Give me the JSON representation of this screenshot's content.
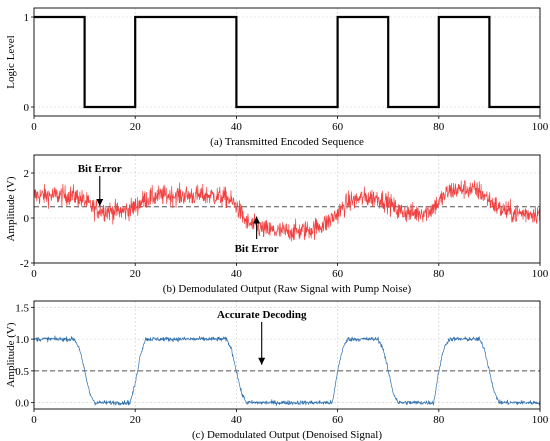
{
  "chart_data": [
    {
      "type": "line",
      "caption": "(a) Transmitted Encoded Sequence",
      "ylabel": "Logic Level",
      "xlim": [
        0,
        100
      ],
      "ylim": [
        -0.1,
        1.1
      ],
      "xticks": [
        "0",
        "20",
        "40",
        "60",
        "80",
        "100"
      ],
      "yticks": [
        "0",
        "1"
      ],
      "grid": true,
      "series": [
        {
          "style": "step",
          "color": "#000000",
          "x": [
            0,
            10,
            10,
            20,
            20,
            40,
            40,
            60,
            60,
            70,
            70,
            80,
            80,
            90,
            90,
            100
          ],
          "y": [
            1,
            1,
            0,
            0,
            1,
            1,
            0,
            0,
            1,
            1,
            0,
            0,
            1,
            1,
            0,
            0
          ]
        }
      ]
    },
    {
      "type": "line",
      "caption": "(b) Demodulated Output (Raw Signal with Pump Noise)",
      "ylabel": "Amplitude (V)",
      "xlim": [
        0,
        100
      ],
      "ylim": [
        -2,
        2.8
      ],
      "xticks": [
        "0",
        "20",
        "40",
        "60",
        "80",
        "100"
      ],
      "yticks": [
        "-2",
        "0",
        "2"
      ],
      "grid": true,
      "threshold": 0.5,
      "series": [
        {
          "style": "noisy",
          "color": "#f04040",
          "x": [
            0,
            8,
            10,
            12,
            15,
            18,
            20,
            22,
            25,
            30,
            35,
            38,
            40,
            42,
            45,
            48,
            52,
            55,
            58,
            60,
            62,
            65,
            68,
            70,
            72,
            75,
            78,
            80,
            82,
            85,
            88,
            90,
            92,
            95,
            100
          ],
          "y": [
            1.0,
            1.0,
            0.75,
            0.4,
            0.3,
            0.3,
            0.5,
            0.85,
            1.0,
            1.0,
            1.0,
            0.9,
            0.55,
            -0.2,
            -0.5,
            -0.6,
            -0.6,
            -0.5,
            -0.2,
            0.2,
            0.7,
            0.9,
            0.9,
            0.7,
            0.3,
            0.2,
            0.3,
            0.7,
            1.2,
            1.3,
            1.2,
            0.8,
            0.4,
            0.2,
            0.2
          ],
          "noise": 0.45
        }
      ],
      "annotations": [
        {
          "text": "Bit Error",
          "x": 13,
          "y": 0.4,
          "label_pos": "above"
        },
        {
          "text": "Bit Error",
          "x": 44,
          "y": 0.2,
          "label_pos": "below"
        }
      ]
    },
    {
      "type": "line",
      "caption": "(c) Demodulated Output (Denoised Signal)",
      "ylabel": "Amplitude (V)",
      "xlim": [
        0,
        100
      ],
      "ylim": [
        -0.1,
        1.6
      ],
      "xticks": [
        "0",
        "20",
        "40",
        "60",
        "80",
        "100"
      ],
      "yticks": [
        "0.0",
        "0.5",
        "1.0",
        "1.5"
      ],
      "grid": true,
      "threshold": 0.5,
      "series": [
        {
          "style": "noisy",
          "color": "#2e6fad",
          "x": [
            0,
            8,
            9,
            10,
            11,
            12,
            19,
            20,
            21,
            22,
            38,
            39,
            40,
            41,
            42,
            59,
            60,
            61,
            62,
            68,
            69,
            70,
            71,
            72,
            79,
            80,
            81,
            82,
            88,
            89,
            90,
            91,
            92,
            100
          ],
          "y": [
            1.0,
            1.0,
            0.85,
            0.5,
            0.15,
            0.0,
            0.0,
            0.3,
            0.75,
            1.0,
            1.0,
            0.85,
            0.5,
            0.15,
            0.0,
            0.0,
            0.5,
            0.85,
            1.0,
            1.0,
            0.85,
            0.5,
            0.15,
            0.0,
            0.0,
            0.5,
            0.85,
            1.0,
            1.0,
            0.85,
            0.5,
            0.15,
            0.0,
            0.0
          ],
          "noise": 0.035
        }
      ],
      "annotations": [
        {
          "text": "Accurate Decoding",
          "x": 45,
          "y": 0.55,
          "label_pos": "above"
        }
      ]
    }
  ]
}
